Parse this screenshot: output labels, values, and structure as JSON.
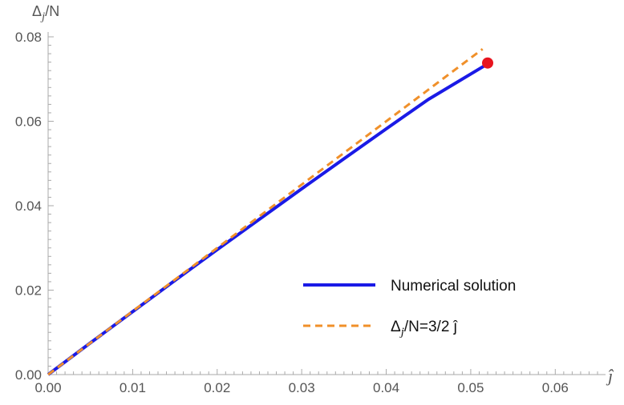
{
  "chart_data": {
    "type": "line",
    "title": "",
    "xlabel": "ĵ",
    "ylabel": {
      "base": "Δ",
      "sub": "j",
      "tail": "/N"
    },
    "xlim": [
      0,
      0.065
    ],
    "ylim": [
      0,
      0.08
    ],
    "x_ticks": [
      0,
      0.01,
      0.02,
      0.03,
      0.04,
      0.05,
      0.06
    ],
    "x_tick_labels": [
      "0.00",
      "0.01",
      "0.02",
      "0.03",
      "0.04",
      "0.05",
      "0.06"
    ],
    "y_ticks": [
      0,
      0.02,
      0.04,
      0.06,
      0.08
    ],
    "y_tick_labels": [
      "0.00",
      "0.02",
      "0.04",
      "0.06",
      "0.08"
    ],
    "grid": false,
    "legend_position": "bottom-right",
    "series": [
      {
        "name": "Numerical solution",
        "style": "solid",
        "color": "#1a1ae6",
        "x": [
          0,
          0.005,
          0.01,
          0.015,
          0.02,
          0.025,
          0.03,
          0.035,
          0.04,
          0.045,
          0.052
        ],
        "y": [
          0,
          0.0075,
          0.0149,
          0.0223,
          0.0296,
          0.0368,
          0.044,
          0.0511,
          0.0582,
          0.0652,
          0.0736
        ]
      },
      {
        "name": {
          "base": "Δ",
          "sub": "j",
          "tail": "/N=3/2 ĵ"
        },
        "style": "dashed",
        "color": "#f0902a",
        "x": [
          0,
          0.0514
        ],
        "y": [
          0,
          0.0771
        ]
      }
    ],
    "marker": {
      "x": 0.052,
      "y": 0.0738,
      "color": "#e8141e"
    }
  }
}
